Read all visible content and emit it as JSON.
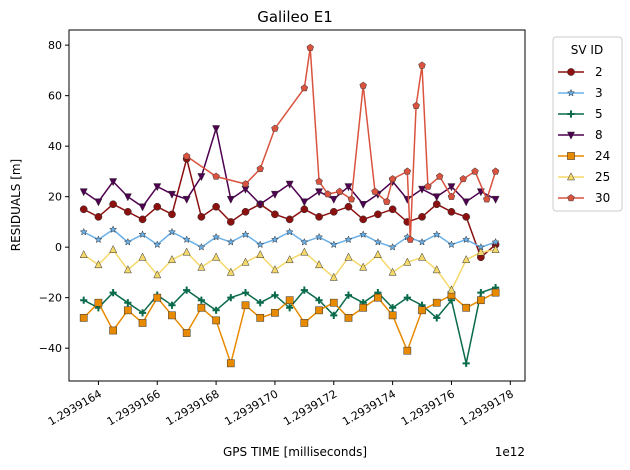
{
  "chart_data": {
    "type": "line",
    "title": "Galileo E1",
    "xlabel": "GPS TIME [milliseconds]",
    "ylabel": "RESIDUALS [m]",
    "x_offset_label": "1e12",
    "xlim": [
      1.2939163,
      1.29391785
    ],
    "ylim": [
      -53,
      86
    ],
    "x_ticks": [
      1.2939164,
      1.2939166,
      1.2939168,
      1.293917,
      1.2939172,
      1.2939174,
      1.2939176,
      1.2939178
    ],
    "x_tick_labels": [
      "1.2939164",
      "1.2939166",
      "1.2939168",
      "1.2939170",
      "1.2939172",
      "1.2939174",
      "1.2939176",
      "1.2939178"
    ],
    "y_ticks": [
      -40,
      -20,
      0,
      20,
      40,
      60,
      80
    ],
    "y_tick_labels": [
      "−40",
      "−20",
      "0",
      "20",
      "40",
      "60",
      "80"
    ],
    "legend_title": "SV ID",
    "legend_position": "outside-right",
    "x_range": [
      1.29391634,
      1.29391775
    ],
    "series": [
      {
        "name": "2",
        "color": "#8b1010",
        "marker": "circle",
        "points": [
          [
            1.29391635,
            15
          ],
          [
            1.2939164,
            12
          ],
          [
            1.29391645,
            17
          ],
          [
            1.2939165,
            14
          ],
          [
            1.29391655,
            11
          ],
          [
            1.2939166,
            16
          ],
          [
            1.29391665,
            13
          ],
          [
            1.2939167,
            35
          ],
          [
            1.29391675,
            12
          ],
          [
            1.2939168,
            16
          ],
          [
            1.29391685,
            10
          ],
          [
            1.2939169,
            14
          ],
          [
            1.29391695,
            17
          ],
          [
            1.293917,
            13
          ],
          [
            1.29391705,
            11
          ],
          [
            1.2939171,
            15
          ],
          [
            1.29391715,
            12
          ],
          [
            1.2939172,
            14
          ],
          [
            1.29391725,
            16
          ],
          [
            1.2939173,
            11
          ],
          [
            1.29391735,
            13
          ],
          [
            1.2939174,
            15
          ],
          [
            1.29391745,
            10
          ],
          [
            1.2939175,
            12
          ],
          [
            1.29391755,
            17
          ],
          [
            1.2939176,
            14
          ],
          [
            1.29391765,
            12
          ],
          [
            1.2939177,
            -4
          ],
          [
            1.29391775,
            1
          ]
        ]
      },
      {
        "name": "3",
        "color": "#6ab0e8",
        "marker": "star",
        "points": [
          [
            1.29391635,
            6
          ],
          [
            1.2939164,
            3
          ],
          [
            1.29391645,
            7
          ],
          [
            1.2939165,
            2
          ],
          [
            1.29391655,
            5
          ],
          [
            1.2939166,
            1
          ],
          [
            1.29391665,
            6
          ],
          [
            1.2939167,
            3
          ],
          [
            1.29391675,
            0
          ],
          [
            1.2939168,
            4
          ],
          [
            1.29391685,
            2
          ],
          [
            1.2939169,
            5
          ],
          [
            1.29391695,
            1
          ],
          [
            1.293917,
            3
          ],
          [
            1.29391705,
            6
          ],
          [
            1.2939171,
            2
          ],
          [
            1.29391715,
            4
          ],
          [
            1.2939172,
            1
          ],
          [
            1.29391725,
            3
          ],
          [
            1.2939173,
            5
          ],
          [
            1.29391735,
            2
          ],
          [
            1.2939174,
            0
          ],
          [
            1.29391745,
            4
          ],
          [
            1.2939175,
            2
          ],
          [
            1.29391755,
            5
          ],
          [
            1.2939176,
            1
          ],
          [
            1.29391765,
            3
          ],
          [
            1.2939177,
            0
          ],
          [
            1.29391775,
            2
          ]
        ]
      },
      {
        "name": "5",
        "color": "#0a6a4c",
        "marker": "plus",
        "points": [
          [
            1.29391635,
            -21
          ],
          [
            1.2939164,
            -24
          ],
          [
            1.29391645,
            -18
          ],
          [
            1.2939165,
            -22
          ],
          [
            1.29391655,
            -26
          ],
          [
            1.2939166,
            -19
          ],
          [
            1.29391665,
            -23
          ],
          [
            1.2939167,
            -17
          ],
          [
            1.29391675,
            -21
          ],
          [
            1.2939168,
            -25
          ],
          [
            1.29391685,
            -20
          ],
          [
            1.2939169,
            -18
          ],
          [
            1.29391695,
            -22
          ],
          [
            1.293917,
            -19
          ],
          [
            1.29391705,
            -24
          ],
          [
            1.2939171,
            -17
          ],
          [
            1.29391715,
            -21
          ],
          [
            1.2939172,
            -27
          ],
          [
            1.29391725,
            -19
          ],
          [
            1.2939173,
            -22
          ],
          [
            1.29391735,
            -18
          ],
          [
            1.2939174,
            -24
          ],
          [
            1.29391745,
            -20
          ],
          [
            1.2939175,
            -23
          ],
          [
            1.29391755,
            -28
          ],
          [
            1.2939176,
            -21
          ],
          [
            1.29391765,
            -46
          ],
          [
            1.2939177,
            -18
          ],
          [
            1.29391775,
            -16
          ]
        ]
      },
      {
        "name": "8",
        "color": "#4f0050",
        "marker": "triangle-down",
        "points": [
          [
            1.29391635,
            22
          ],
          [
            1.2939164,
            18
          ],
          [
            1.29391645,
            26
          ],
          [
            1.2939165,
            20
          ],
          [
            1.29391655,
            16
          ],
          [
            1.2939166,
            24
          ],
          [
            1.29391665,
            21
          ],
          [
            1.2939167,
            19
          ],
          [
            1.29391675,
            28
          ],
          [
            1.2939168,
            47
          ],
          [
            1.29391685,
            19
          ],
          [
            1.2939169,
            23
          ],
          [
            1.29391695,
            17
          ],
          [
            1.293917,
            21
          ],
          [
            1.29391705,
            25
          ],
          [
            1.2939171,
            18
          ],
          [
            1.29391715,
            22
          ],
          [
            1.2939172,
            19
          ],
          [
            1.29391725,
            24
          ],
          [
            1.2939173,
            17
          ],
          [
            1.29391735,
            21
          ],
          [
            1.2939174,
            26
          ],
          [
            1.29391745,
            19
          ],
          [
            1.2939175,
            23
          ],
          [
            1.29391755,
            20
          ],
          [
            1.2939176,
            24
          ],
          [
            1.29391765,
            18
          ],
          [
            1.2939177,
            22
          ],
          [
            1.29391775,
            19
          ]
        ]
      },
      {
        "name": "24",
        "color": "#e88a00",
        "marker": "square",
        "points": [
          [
            1.29391635,
            -28
          ],
          [
            1.2939164,
            -22
          ],
          [
            1.29391645,
            -33
          ],
          [
            1.2939165,
            -25
          ],
          [
            1.29391655,
            -30
          ],
          [
            1.2939166,
            -20
          ],
          [
            1.29391665,
            -27
          ],
          [
            1.2939167,
            -34
          ],
          [
            1.29391675,
            -24
          ],
          [
            1.2939168,
            -29
          ],
          [
            1.29391685,
            -46
          ],
          [
            1.2939169,
            -23
          ],
          [
            1.29391695,
            -28
          ],
          [
            1.293917,
            -26
          ],
          [
            1.29391705,
            -21
          ],
          [
            1.2939171,
            -30
          ],
          [
            1.29391715,
            -25
          ],
          [
            1.2939172,
            -22
          ],
          [
            1.29391725,
            -28
          ],
          [
            1.2939173,
            -24
          ],
          [
            1.29391735,
            -20
          ],
          [
            1.2939174,
            -27
          ],
          [
            1.29391745,
            -41
          ],
          [
            1.2939175,
            -25
          ],
          [
            1.29391755,
            -22
          ],
          [
            1.2939176,
            -19
          ],
          [
            1.29391765,
            -24
          ],
          [
            1.2939177,
            -21
          ],
          [
            1.29391775,
            -18
          ]
        ]
      },
      {
        "name": "25",
        "color": "#f5d86a",
        "marker": "triangle-up",
        "points": [
          [
            1.29391635,
            -3
          ],
          [
            1.2939164,
            -7
          ],
          [
            1.29391645,
            -1
          ],
          [
            1.2939165,
            -9
          ],
          [
            1.29391655,
            -4
          ],
          [
            1.2939166,
            -11
          ],
          [
            1.29391665,
            -5
          ],
          [
            1.2939167,
            -2
          ],
          [
            1.29391675,
            -8
          ],
          [
            1.2939168,
            -4
          ],
          [
            1.29391685,
            -10
          ],
          [
            1.2939169,
            -6
          ],
          [
            1.29391695,
            -3
          ],
          [
            1.293917,
            -9
          ],
          [
            1.29391705,
            -5
          ],
          [
            1.2939171,
            -2
          ],
          [
            1.29391715,
            -7
          ],
          [
            1.2939172,
            -12
          ],
          [
            1.29391725,
            -4
          ],
          [
            1.2939173,
            -8
          ],
          [
            1.29391735,
            -3
          ],
          [
            1.2939174,
            -10
          ],
          [
            1.29391745,
            -6
          ],
          [
            1.2939175,
            -4
          ],
          [
            1.29391755,
            -9
          ],
          [
            1.2939176,
            -17
          ],
          [
            1.29391765,
            -5
          ],
          [
            1.2939177,
            -2
          ],
          [
            1.29391775,
            -1
          ]
        ]
      },
      {
        "name": "30",
        "color": "#d9533f",
        "marker": "pentagon",
        "points": [
          [
            1.2939167,
            36
          ],
          [
            1.2939168,
            28
          ],
          [
            1.2939169,
            25
          ],
          [
            1.29391695,
            31
          ],
          [
            1.293917,
            47
          ],
          [
            1.2939171,
            63
          ],
          [
            1.29391712,
            79
          ],
          [
            1.29391715,
            26
          ],
          [
            1.29391718,
            21
          ],
          [
            1.29391722,
            22
          ],
          [
            1.29391726,
            19
          ],
          [
            1.2939173,
            64
          ],
          [
            1.29391734,
            22
          ],
          [
            1.29391738,
            18
          ],
          [
            1.2939174,
            27
          ],
          [
            1.29391745,
            30
          ],
          [
            1.29391746,
            3
          ],
          [
            1.29391748,
            56
          ],
          [
            1.2939175,
            72
          ],
          [
            1.29391752,
            24
          ],
          [
            1.29391756,
            28
          ],
          [
            1.2939176,
            20
          ],
          [
            1.29391764,
            27
          ],
          [
            1.29391768,
            30
          ],
          [
            1.29391772,
            19
          ],
          [
            1.29391775,
            30
          ]
        ]
      }
    ]
  }
}
